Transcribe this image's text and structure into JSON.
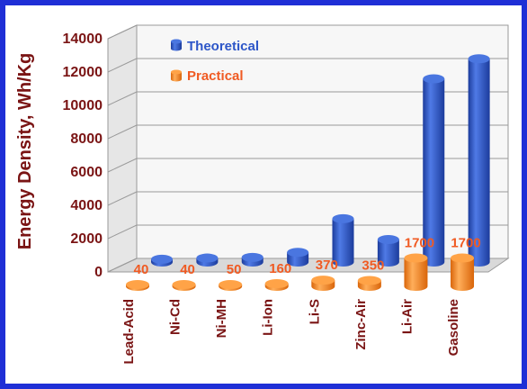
{
  "chart_data": {
    "type": "bar",
    "title": "",
    "xlabel": "",
    "ylabel": "Energy Density, Wh/Kg",
    "ylim": [
      0,
      14000
    ],
    "yticks": [
      0,
      2000,
      4000,
      6000,
      8000,
      10000,
      12000,
      14000
    ],
    "grid": true,
    "legend_position": "top-center",
    "categories": [
      "Lead-Acid",
      "Ni-Cd",
      "Ni-MH",
      "Li-Ion",
      "Li-S",
      "Zinc-Air",
      "Li-Air",
      "Gasoline"
    ],
    "series": [
      {
        "name": "Theoretical",
        "color": "#2e56c9",
        "values": [
          170,
          240,
          280,
          580,
          2600,
          1350,
          11000,
          12200
        ]
      },
      {
        "name": "Practical",
        "color": "#ff8c1a",
        "values": [
          40,
          40,
          50,
          160,
          370,
          350,
          1700,
          1700
        ]
      }
    ],
    "data_labels": [
      "40",
      "40",
      "50",
      "160",
      "370",
      "350",
      "1700",
      "1700"
    ]
  }
}
